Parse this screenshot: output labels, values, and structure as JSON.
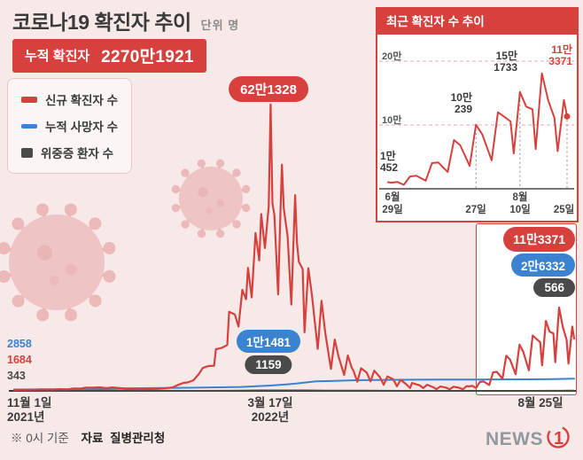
{
  "colors": {
    "red": "#d6413e",
    "blue": "#3b82d0",
    "dark": "#4a4a4a",
    "background": "#f8e9e9"
  },
  "icons": {
    "background_decoration": "coronavirus-illustration"
  },
  "header": {
    "title": "코로나19 확진자 추이",
    "unit": "단위 명",
    "badge_label": "누적 확진자",
    "badge_value": "2270만1921"
  },
  "legend": {
    "items": [
      {
        "label": "신규 확진자 수",
        "color": "#d6413e"
      },
      {
        "label": "누적 사망자 수",
        "color": "#3b82d0"
      },
      {
        "label": "위중증 환자 수",
        "color": "#4a4a4a"
      }
    ]
  },
  "footer": {
    "note": "※ 0시 기준",
    "source_label": "자료",
    "source_value": "질병관리청"
  },
  "logo": {
    "gray": "NEWS",
    "red": "1"
  },
  "chart_data": [
    {
      "id": "main",
      "type": "line",
      "title": "코로나19 확진자 추이",
      "x_axis": "일자 (2021-11-01 ~ 2022-08-25, day index)",
      "x_range": [
        0,
        297
      ],
      "ylim": [
        0,
        650000
      ],
      "grid": false,
      "axis_color": "#3a3a3a",
      "start_labels": [
        "2858",
        "1684",
        "343"
      ],
      "x_ticks": [
        {
          "x": 0,
          "line1": "11월 1일",
          "line2": "2021년"
        },
        {
          "x": 136,
          "line1": "3월 17일",
          "line2": "2022년"
        },
        {
          "x": 297,
          "line1": "8월 25일",
          "line2": ""
        }
      ],
      "annotations": [
        {
          "id": "peak-new-cases",
          "x": 136,
          "value": 621328,
          "label": "62만1328",
          "color": "red"
        },
        {
          "id": "deaths-at-peak",
          "x": 136,
          "value": 11481,
          "label": "1만1481",
          "color": "blue"
        },
        {
          "id": "severe-at-peak",
          "x": 136,
          "value": 1159,
          "label": "1159",
          "color": "dark"
        },
        {
          "id": "latest-new-cases",
          "x": 297,
          "value": 113371,
          "label": "11만3371",
          "color": "red"
        },
        {
          "id": "latest-deaths",
          "x": 297,
          "value": 26332,
          "label": "2만6332",
          "color": "blue"
        },
        {
          "id": "latest-severe",
          "x": 297,
          "value": 566,
          "label": "566",
          "color": "dark"
        }
      ],
      "series": [
        {
          "name": "위중증 환자 수",
          "color": "#4a4a4a",
          "width": 1.8,
          "points": [
            [
              0,
              343
            ],
            [
              20,
              500
            ],
            [
              35,
              733
            ],
            [
              45,
              989
            ],
            [
              52,
              1025
            ],
            [
              60,
              1049
            ],
            [
              70,
              839
            ],
            [
              80,
              392
            ],
            [
              90,
              282
            ],
            [
              100,
              285
            ],
            [
              110,
              314
            ],
            [
              120,
              727
            ],
            [
              130,
              1113
            ],
            [
              136,
              1159
            ],
            [
              145,
              1085
            ],
            [
              155,
              1128
            ],
            [
              165,
              834
            ],
            [
              175,
              613
            ],
            [
              185,
              493
            ],
            [
              195,
              341
            ],
            [
              205,
              225
            ],
            [
              215,
              118
            ],
            [
              225,
              98
            ],
            [
              235,
              62
            ],
            [
              245,
              56
            ],
            [
              255,
              74
            ],
            [
              265,
              96
            ],
            [
              275,
              284
            ],
            [
              285,
              418
            ],
            [
              293,
              487
            ],
            [
              297,
              566
            ]
          ]
        },
        {
          "name": "누적 사망자 수",
          "color": "#3b82d0",
          "width": 2,
          "points": [
            [
              0,
              2858
            ],
            [
              30,
              3658
            ],
            [
              61,
              5625
            ],
            [
              92,
              6712
            ],
            [
              120,
              8394
            ],
            [
              136,
              11481
            ],
            [
              145,
              14294
            ],
            [
              150,
              16230
            ],
            [
              160,
              20616
            ],
            [
              170,
              21825
            ],
            [
              181,
              23007
            ],
            [
              196,
              23771
            ],
            [
              212,
              24279
            ],
            [
              227,
              24463
            ],
            [
              242,
              24555
            ],
            [
              257,
              24794
            ],
            [
              273,
              25027
            ],
            [
              285,
              25673
            ],
            [
              297,
              26332
            ]
          ]
        },
        {
          "name": "신규 확진자 수",
          "color": "#d6413e",
          "width": 2.2,
          "points": [
            [
              0,
              1684
            ],
            [
              3,
              2667
            ],
            [
              7,
              2344
            ],
            [
              10,
              2425
            ],
            [
              14,
              3187
            ],
            [
              17,
              3034
            ],
            [
              21,
              2827
            ],
            [
              24,
              3938
            ],
            [
              28,
              3032
            ],
            [
              31,
              5123
            ],
            [
              35,
              4954
            ],
            [
              38,
              7175
            ],
            [
              42,
              6919
            ],
            [
              45,
              7622
            ],
            [
              49,
              6233
            ],
            [
              52,
              7456
            ],
            [
              56,
              6236
            ],
            [
              59,
              5037
            ],
            [
              61,
              4416
            ],
            [
              63,
              3833
            ],
            [
              68,
              3376
            ],
            [
              72,
              4072
            ],
            [
              76,
              4423
            ],
            [
              80,
              5805
            ],
            [
              84,
              7513
            ],
            [
              87,
              13012
            ],
            [
              90,
              17526
            ],
            [
              92,
              18343
            ],
            [
              95,
              22907
            ],
            [
              98,
              36719
            ],
            [
              100,
              49567
            ],
            [
              103,
              53926
            ],
            [
              106,
              54619
            ],
            [
              107,
              90443
            ],
            [
              110,
              93135
            ],
            [
              113,
              99573
            ],
            [
              114,
              171452
            ],
            [
              117,
              165890
            ],
            [
              119,
              139626
            ],
            [
              121,
              219241
            ],
            [
              123,
              198803
            ],
            [
              124,
              266853
            ],
            [
              126,
              202721
            ],
            [
              128,
              342446
            ],
            [
              130,
              282987
            ],
            [
              131,
              383664
            ],
            [
              133,
              309790
            ],
            [
              135,
              400741
            ],
            [
              136,
              621328
            ],
            [
              137,
              407017
            ],
            [
              138,
              381454
            ],
            [
              140,
              209169
            ],
            [
              141,
              353980
            ],
            [
              142,
              490881
            ],
            [
              143,
              395598
            ],
            [
              145,
              335580
            ],
            [
              147,
              187213
            ],
            [
              149,
              424641
            ],
            [
              150,
              320743
            ],
            [
              151,
              280273
            ],
            [
              153,
              264171
            ],
            [
              154,
              127190
            ],
            [
              156,
              266135
            ],
            [
              158,
              205312
            ],
            [
              161,
              90928
            ],
            [
              163,
              195419
            ],
            [
              165,
              125846
            ],
            [
              168,
              47743
            ],
            [
              170,
              111319
            ],
            [
              172,
              75449
            ],
            [
              175,
              34370
            ],
            [
              177,
              76787
            ],
            [
              179,
              50568
            ],
            [
              180,
              43286
            ],
            [
              182,
              20084
            ],
            [
              184,
              49064
            ],
            [
              187,
              39600
            ],
            [
              189,
              20601
            ],
            [
              191,
              43925
            ],
            [
              194,
              29582
            ],
            [
              196,
              13296
            ],
            [
              198,
              31352
            ],
            [
              201,
              25125
            ],
            [
              203,
              9975
            ],
            [
              205,
              23956
            ],
            [
              208,
              14293
            ],
            [
              210,
              6139
            ],
            [
              211,
              17191
            ],
            [
              212,
              15797
            ],
            [
              215,
              12048
            ],
            [
              217,
              6172
            ],
            [
              219,
              13358
            ],
            [
              222,
              8442
            ],
            [
              224,
              3828
            ],
            [
              226,
              9435
            ],
            [
              229,
              7042
            ],
            [
              231,
              3538
            ],
            [
              233,
              8992
            ],
            [
              236,
              6790
            ],
            [
              238,
              3423
            ],
            [
              240,
              10452
            ],
            [
              241,
              9591
            ],
            [
              243,
              10715
            ],
            [
              245,
              6253
            ],
            [
              247,
              19361
            ],
            [
              249,
              20410
            ],
            [
              252,
              12693
            ],
            [
              254,
              40285
            ],
            [
              256,
              41310
            ],
            [
              259,
              26299
            ],
            [
              261,
              76402
            ],
            [
              263,
              68069
            ],
            [
              266,
              35883
            ],
            [
              268,
              100239
            ],
            [
              270,
              85320
            ],
            [
              273,
              44689
            ],
            [
              275,
              119922
            ],
            [
              277,
              112901
            ],
            [
              279,
              105507
            ],
            [
              280,
              55292
            ],
            [
              282,
              151733
            ],
            [
              284,
              128714
            ],
            [
              286,
              124592
            ],
            [
              287,
              62078
            ],
            [
              289,
              180803
            ],
            [
              291,
              138812
            ],
            [
              293,
              110944
            ],
            [
              294,
              59046
            ],
            [
              296,
              139339
            ],
            [
              297,
              113371
            ]
          ]
        }
      ]
    },
    {
      "id": "inset",
      "type": "line",
      "title": "최근 확진자 수 추이",
      "x_axis": "일자 (2022-06-29 ~ 2022-08-25, day index)",
      "x_range": [
        240,
        297
      ],
      "ylim": [
        0,
        200000
      ],
      "grid": true,
      "axis_color": "#4a4a4a",
      "end_dot": true,
      "marker_x": [
        268,
        282,
        297
      ],
      "gridlines": [
        {
          "value": 200000,
          "label": "20만"
        },
        {
          "value": 100000,
          "label": "10만"
        }
      ],
      "x_ticks": [
        {
          "x": 240,
          "line1": "6월",
          "line2": "29일"
        },
        {
          "x": 268,
          "line1": "",
          "line2": "27일"
        },
        {
          "x": 282,
          "line1": "8월",
          "line2": "10일"
        },
        {
          "x": 297,
          "line1": "",
          "line2": "25일"
        }
      ],
      "annotations": [
        {
          "x": 240,
          "value": 10452,
          "line1": "1만",
          "line2": "452",
          "color": "dark"
        },
        {
          "x": 268,
          "value": 100239,
          "line1": "10만",
          "line2": "239",
          "color": "dark"
        },
        {
          "x": 282,
          "value": 151733,
          "line1": "15만",
          "line2": "1733",
          "color": "dark"
        },
        {
          "x": 297,
          "value": 113371,
          "line1": "11만",
          "line2": "3371",
          "color": "red"
        }
      ],
      "series": [
        {
          "name": "신규 확진자 수",
          "color": "#d6413e",
          "width": 2,
          "points": [
            [
              240,
              10452
            ],
            [
              241,
              9591
            ],
            [
              243,
              10715
            ],
            [
              245,
              6253
            ],
            [
              247,
              19361
            ],
            [
              249,
              20410
            ],
            [
              252,
              12693
            ],
            [
              254,
              40285
            ],
            [
              256,
              41310
            ],
            [
              259,
              26299
            ],
            [
              261,
              76402
            ],
            [
              263,
              68069
            ],
            [
              266,
              35883
            ],
            [
              268,
              100239
            ],
            [
              270,
              85320
            ],
            [
              273,
              44689
            ],
            [
              275,
              119922
            ],
            [
              277,
              112901
            ],
            [
              279,
              105507
            ],
            [
              280,
              55292
            ],
            [
              282,
              151733
            ],
            [
              284,
              128714
            ],
            [
              286,
              124592
            ],
            [
              287,
              62078
            ],
            [
              289,
              180803
            ],
            [
              291,
              138812
            ],
            [
              293,
              110944
            ],
            [
              294,
              59046
            ],
            [
              296,
              139339
            ],
            [
              297,
              113371
            ]
          ]
        }
      ]
    }
  ]
}
